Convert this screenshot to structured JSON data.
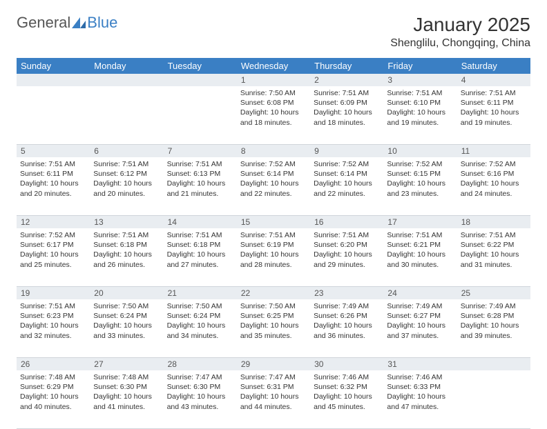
{
  "brand": {
    "name1": "General",
    "name2": "Blue"
  },
  "title": "January 2025",
  "location": "Shenglilu, Chongqing, China",
  "colors": {
    "header_bg": "#3a7fc4",
    "daynum_bg": "#e9edf1",
    "border": "#cfd4da",
    "text": "#333333",
    "background": "#ffffff"
  },
  "typography": {
    "body_fontsize": 10.5,
    "title_fontsize": 28,
    "location_fontsize": 16,
    "dayheader_fontsize": 13
  },
  "day_names": [
    "Sunday",
    "Monday",
    "Tuesday",
    "Wednesday",
    "Thursday",
    "Friday",
    "Saturday"
  ],
  "weeks": [
    {
      "nums": [
        "",
        "",
        "",
        "1",
        "2",
        "3",
        "4"
      ],
      "cells": [
        null,
        null,
        null,
        {
          "sunrise": "7:50 AM",
          "sunset": "6:08 PM",
          "daylight": "10 hours and 18 minutes."
        },
        {
          "sunrise": "7:51 AM",
          "sunset": "6:09 PM",
          "daylight": "10 hours and 18 minutes."
        },
        {
          "sunrise": "7:51 AM",
          "sunset": "6:10 PM",
          "daylight": "10 hours and 19 minutes."
        },
        {
          "sunrise": "7:51 AM",
          "sunset": "6:11 PM",
          "daylight": "10 hours and 19 minutes."
        }
      ]
    },
    {
      "nums": [
        "5",
        "6",
        "7",
        "8",
        "9",
        "10",
        "11"
      ],
      "cells": [
        {
          "sunrise": "7:51 AM",
          "sunset": "6:11 PM",
          "daylight": "10 hours and 20 minutes."
        },
        {
          "sunrise": "7:51 AM",
          "sunset": "6:12 PM",
          "daylight": "10 hours and 20 minutes."
        },
        {
          "sunrise": "7:51 AM",
          "sunset": "6:13 PM",
          "daylight": "10 hours and 21 minutes."
        },
        {
          "sunrise": "7:52 AM",
          "sunset": "6:14 PM",
          "daylight": "10 hours and 22 minutes."
        },
        {
          "sunrise": "7:52 AM",
          "sunset": "6:14 PM",
          "daylight": "10 hours and 22 minutes."
        },
        {
          "sunrise": "7:52 AM",
          "sunset": "6:15 PM",
          "daylight": "10 hours and 23 minutes."
        },
        {
          "sunrise": "7:52 AM",
          "sunset": "6:16 PM",
          "daylight": "10 hours and 24 minutes."
        }
      ]
    },
    {
      "nums": [
        "12",
        "13",
        "14",
        "15",
        "16",
        "17",
        "18"
      ],
      "cells": [
        {
          "sunrise": "7:52 AM",
          "sunset": "6:17 PM",
          "daylight": "10 hours and 25 minutes."
        },
        {
          "sunrise": "7:51 AM",
          "sunset": "6:18 PM",
          "daylight": "10 hours and 26 minutes."
        },
        {
          "sunrise": "7:51 AM",
          "sunset": "6:18 PM",
          "daylight": "10 hours and 27 minutes."
        },
        {
          "sunrise": "7:51 AM",
          "sunset": "6:19 PM",
          "daylight": "10 hours and 28 minutes."
        },
        {
          "sunrise": "7:51 AM",
          "sunset": "6:20 PM",
          "daylight": "10 hours and 29 minutes."
        },
        {
          "sunrise": "7:51 AM",
          "sunset": "6:21 PM",
          "daylight": "10 hours and 30 minutes."
        },
        {
          "sunrise": "7:51 AM",
          "sunset": "6:22 PM",
          "daylight": "10 hours and 31 minutes."
        }
      ]
    },
    {
      "nums": [
        "19",
        "20",
        "21",
        "22",
        "23",
        "24",
        "25"
      ],
      "cells": [
        {
          "sunrise": "7:51 AM",
          "sunset": "6:23 PM",
          "daylight": "10 hours and 32 minutes."
        },
        {
          "sunrise": "7:50 AM",
          "sunset": "6:24 PM",
          "daylight": "10 hours and 33 minutes."
        },
        {
          "sunrise": "7:50 AM",
          "sunset": "6:24 PM",
          "daylight": "10 hours and 34 minutes."
        },
        {
          "sunrise": "7:50 AM",
          "sunset": "6:25 PM",
          "daylight": "10 hours and 35 minutes."
        },
        {
          "sunrise": "7:49 AM",
          "sunset": "6:26 PM",
          "daylight": "10 hours and 36 minutes."
        },
        {
          "sunrise": "7:49 AM",
          "sunset": "6:27 PM",
          "daylight": "10 hours and 37 minutes."
        },
        {
          "sunrise": "7:49 AM",
          "sunset": "6:28 PM",
          "daylight": "10 hours and 39 minutes."
        }
      ]
    },
    {
      "nums": [
        "26",
        "27",
        "28",
        "29",
        "30",
        "31",
        ""
      ],
      "cells": [
        {
          "sunrise": "7:48 AM",
          "sunset": "6:29 PM",
          "daylight": "10 hours and 40 minutes."
        },
        {
          "sunrise": "7:48 AM",
          "sunset": "6:30 PM",
          "daylight": "10 hours and 41 minutes."
        },
        {
          "sunrise": "7:47 AM",
          "sunset": "6:30 PM",
          "daylight": "10 hours and 43 minutes."
        },
        {
          "sunrise": "7:47 AM",
          "sunset": "6:31 PM",
          "daylight": "10 hours and 44 minutes."
        },
        {
          "sunrise": "7:46 AM",
          "sunset": "6:32 PM",
          "daylight": "10 hours and 45 minutes."
        },
        {
          "sunrise": "7:46 AM",
          "sunset": "6:33 PM",
          "daylight": "10 hours and 47 minutes."
        },
        null
      ]
    }
  ],
  "labels": {
    "sunrise": "Sunrise:",
    "sunset": "Sunset:",
    "daylight": "Daylight:"
  }
}
